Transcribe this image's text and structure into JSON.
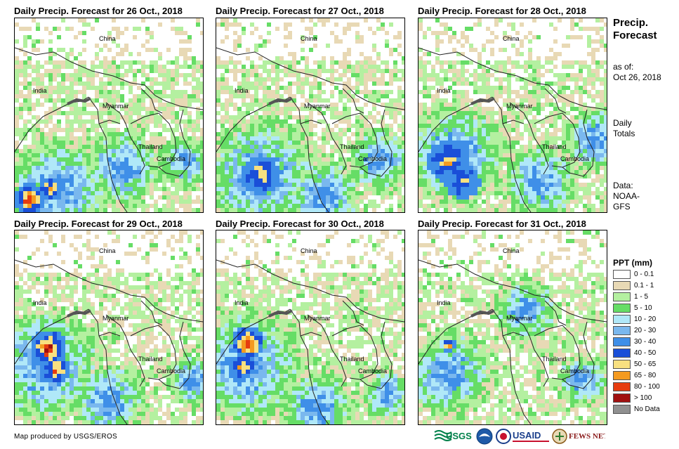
{
  "panels": [
    {
      "title": "Daily Precip. Forecast for 26 Oct., 2018",
      "seed": 1,
      "heavy": [
        [
          18,
          255,
          22,
          0.95
        ],
        [
          48,
          240,
          18,
          0.7
        ]
      ],
      "wet": [
        [
          60,
          240,
          80
        ],
        [
          150,
          210,
          60
        ],
        [
          240,
          200,
          40
        ]
      ]
    },
    {
      "title": "Daily Precip. Forecast for 27 Oct., 2018",
      "seed": 2,
      "heavy": [
        [
          60,
          220,
          28,
          0.55
        ]
      ],
      "wet": [
        [
          60,
          220,
          90
        ],
        [
          150,
          250,
          60
        ],
        [
          230,
          200,
          50
        ]
      ]
    },
    {
      "title": "Daily Precip. Forecast for 28 Oct., 2018",
      "seed": 3,
      "heavy": [
        [
          40,
          200,
          30,
          0.6
        ],
        [
          60,
          230,
          25,
          0.5
        ]
      ],
      "wet": [
        [
          50,
          190,
          80
        ],
        [
          170,
          230,
          60
        ],
        [
          250,
          170,
          50
        ]
      ]
    },
    {
      "title": "Daily Precip. Forecast for 29 Oct., 2018",
      "seed": 4,
      "heavy": [
        [
          45,
          165,
          26,
          1.0
        ],
        [
          55,
          195,
          20,
          0.8
        ]
      ],
      "wet": [
        [
          40,
          190,
          90
        ],
        [
          130,
          240,
          60
        ],
        [
          250,
          210,
          40
        ]
      ]
    },
    {
      "title": "Daily Precip. Forecast for 30 Oct., 2018",
      "seed": 5,
      "heavy": [
        [
          42,
          158,
          24,
          1.0
        ],
        [
          35,
          190,
          18,
          0.75
        ]
      ],
      "wet": [
        [
          40,
          190,
          90
        ],
        [
          140,
          250,
          60
        ],
        [
          240,
          230,
          40
        ]
      ]
    },
    {
      "title": "Daily Precip. Forecast for 31 Oct., 2018",
      "seed": 6,
      "heavy": [
        [
          40,
          160,
          10,
          0.85
        ]
      ],
      "wet": [
        [
          40,
          200,
          70
        ],
        [
          150,
          110,
          50
        ],
        [
          230,
          210,
          40
        ]
      ]
    }
  ],
  "map_labels": {
    "china": "China",
    "india": "India",
    "myanmar": "Myanmar",
    "thailand": "Thailand",
    "cambodia": "Cambodia"
  },
  "side": {
    "title_line1": "Precip.",
    "title_line2": "Forecast",
    "asof_label": "as of:",
    "asof_date": "Oct 26, 2018",
    "totals_line1": "Daily",
    "totals_line2": "Totals",
    "data_line1": "Data:",
    "data_line2": "NOAA-",
    "data_line3": "GFS"
  },
  "legend": {
    "title": "PPT (mm)",
    "items": [
      {
        "label": "0 - 0.1",
        "color": "#ffffff"
      },
      {
        "label": "0.1 - 1",
        "color": "#e8d9b5"
      },
      {
        "label": "1 - 5",
        "color": "#b4f0a0"
      },
      {
        "label": "5 - 10",
        "color": "#66dd66"
      },
      {
        "label": "10 - 20",
        "color": "#b0e8f8"
      },
      {
        "label": "20 - 30",
        "color": "#7ab8ee"
      },
      {
        "label": "30 - 40",
        "color": "#3f8fe8"
      },
      {
        "label": "40 - 50",
        "color": "#1a4fd8"
      },
      {
        "label": "50 - 65",
        "color": "#f8e080"
      },
      {
        "label": "65 - 80",
        "color": "#f49a20"
      },
      {
        "label": "80 - 100",
        "color": "#e63c10"
      },
      {
        "label": "> 100",
        "color": "#a01010"
      },
      {
        "label": "No Data",
        "color": "#909090"
      }
    ]
  },
  "credit": "Map produced by USGS/EROS",
  "logos": {
    "usgs": "USGS",
    "usaid": "USAID",
    "fewsnet": "FEWS NET"
  }
}
